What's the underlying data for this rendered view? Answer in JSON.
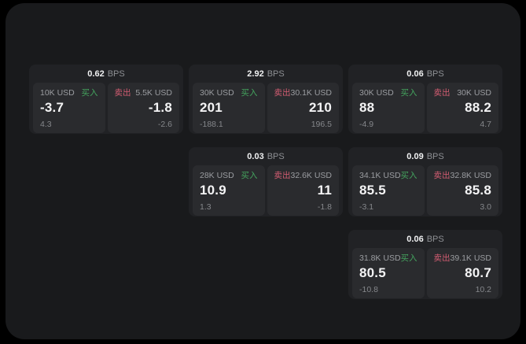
{
  "app": {
    "background": "#000000",
    "panel_background": "#191a1c",
    "card_background": "#212225",
    "tile_background": "#2a2b2e"
  },
  "labels": {
    "bps_unit": "BPS",
    "buy": "买入",
    "sell": "卖出"
  },
  "colors": {
    "buy_label": "#44a45e",
    "sell_label": "#d35d72",
    "price_text": "#f4f4f5",
    "muted_text": "#9b9da1"
  },
  "cards": [
    {
      "bps": "0.62",
      "buy": {
        "amount": "10K USD",
        "price": "-3.7",
        "delta": "4.3"
      },
      "sell": {
        "amount": "5.5K USD",
        "price": "-1.8",
        "delta": "-2.6"
      }
    },
    {
      "bps": "2.92",
      "buy": {
        "amount": "30K USD",
        "price": "201",
        "delta": "-188.1"
      },
      "sell": {
        "amount": "30.1K USD",
        "price": "210",
        "delta": "196.5"
      }
    },
    {
      "bps": "0.06",
      "buy": {
        "amount": "30K USD",
        "price": "88",
        "delta": "-4.9"
      },
      "sell": {
        "amount": "30K USD",
        "price": "88.2",
        "delta": "4.7"
      }
    },
    {
      "bps": "0.03",
      "buy": {
        "amount": "28K USD",
        "price": "10.9",
        "delta": "1.3"
      },
      "sell": {
        "amount": "32.6K USD",
        "price": "11",
        "delta": "-1.8"
      }
    },
    {
      "bps": "0.09",
      "buy": {
        "amount": "34.1K USD",
        "price": "85.5",
        "delta": "-3.1"
      },
      "sell": {
        "amount": "32.8K USD",
        "price": "85.8",
        "delta": "3.0"
      }
    },
    {
      "bps": "0.06",
      "buy": {
        "amount": "31.8K USD",
        "price": "80.5",
        "delta": "-10.8"
      },
      "sell": {
        "amount": "39.1K USD",
        "price": "80.7",
        "delta": "10.2"
      }
    }
  ]
}
